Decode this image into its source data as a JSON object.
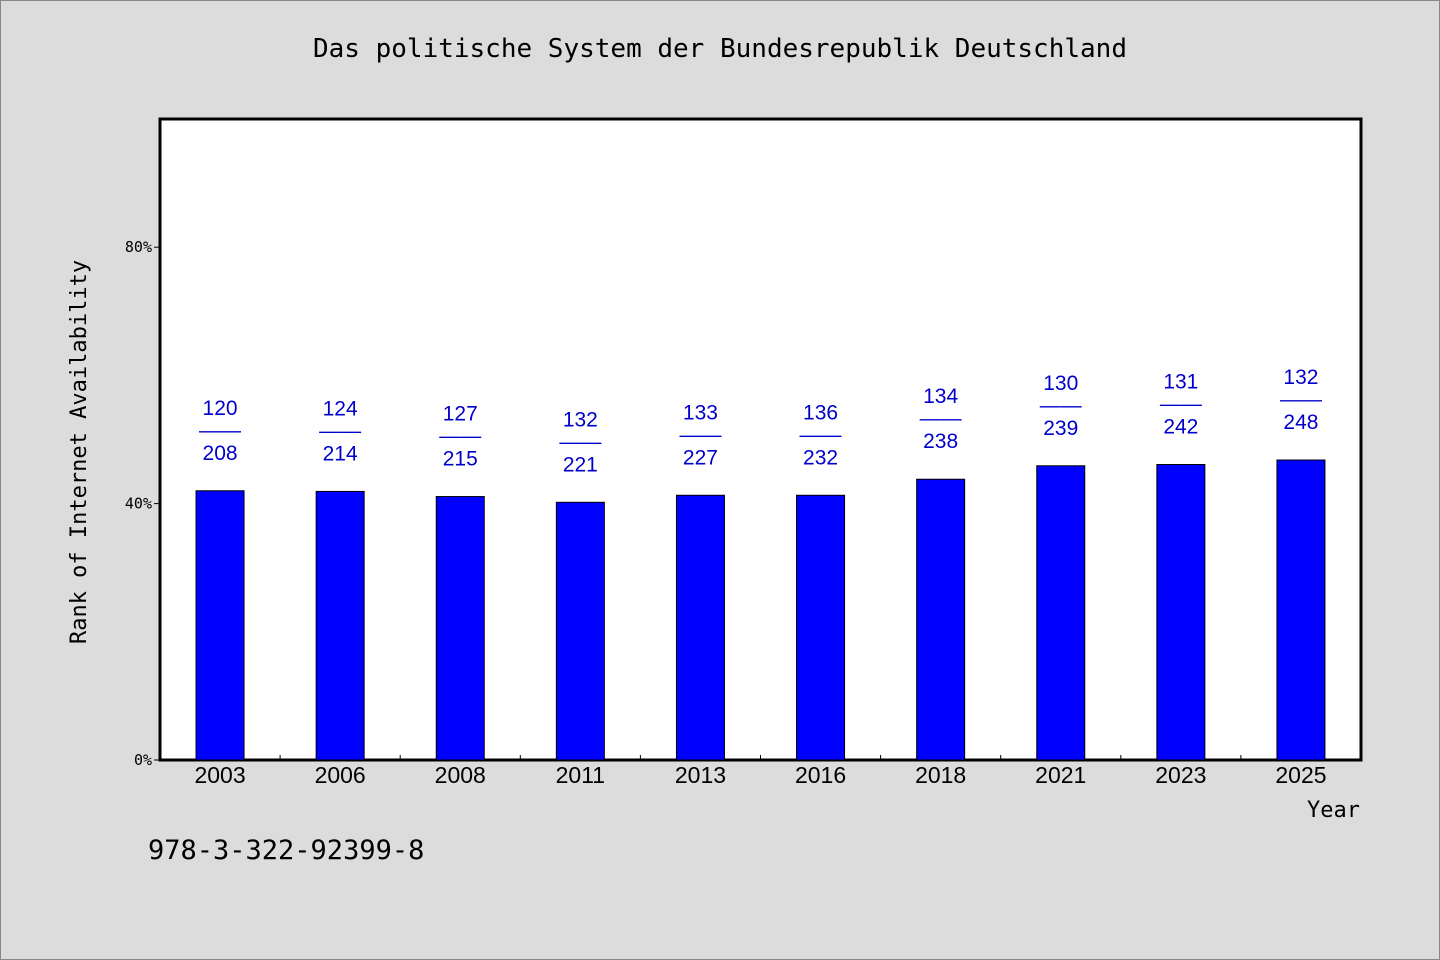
{
  "title": "Das politische System der Bundesrepublik Deutschland",
  "footer_text": "978-3-322-92399-8",
  "colors": {
    "bar": "#0000ff",
    "bar_label": "#0000cc",
    "background": "#dcdcdc",
    "plot_background": "#ffffff"
  },
  "chart_data": {
    "type": "bar",
    "title": "Das politische System der Bundesrepublik Deutschland",
    "xlabel": "Year",
    "ylabel": "Rank of Internet Availability",
    "categories": [
      "2003",
      "2006",
      "2008",
      "2011",
      "2013",
      "2016",
      "2018",
      "2021",
      "2023",
      "2025"
    ],
    "values": [
      42,
      41.9,
      41.1,
      40.2,
      41.3,
      41.3,
      43.8,
      45.9,
      46.1,
      46.8
    ],
    "ylim": [
      0,
      100
    ],
    "y_ticks": [
      {
        "value": 0,
        "label": "0%"
      },
      {
        "value": 40,
        "label": "40%"
      },
      {
        "value": 80,
        "label": "80%"
      }
    ],
    "labels": [
      {
        "top": "120",
        "sep": "——",
        "bottom": "208"
      },
      {
        "top": "124",
        "sep": "——",
        "bottom": "214"
      },
      {
        "top": "127",
        "sep": "——",
        "bottom": "215"
      },
      {
        "top": "132",
        "sep": "——",
        "bottom": "221"
      },
      {
        "top": "133",
        "sep": "——",
        "bottom": "227"
      },
      {
        "top": "136",
        "sep": "——",
        "bottom": "232"
      },
      {
        "top": "134",
        "sep": "——",
        "bottom": "238"
      },
      {
        "top": "130",
        "sep": "——",
        "bottom": "239"
      },
      {
        "top": "131",
        "sep": "——",
        "bottom": "242"
      },
      {
        "top": "132",
        "sep": "——",
        "bottom": "248"
      }
    ],
    "grid": false,
    "legend": "none"
  }
}
